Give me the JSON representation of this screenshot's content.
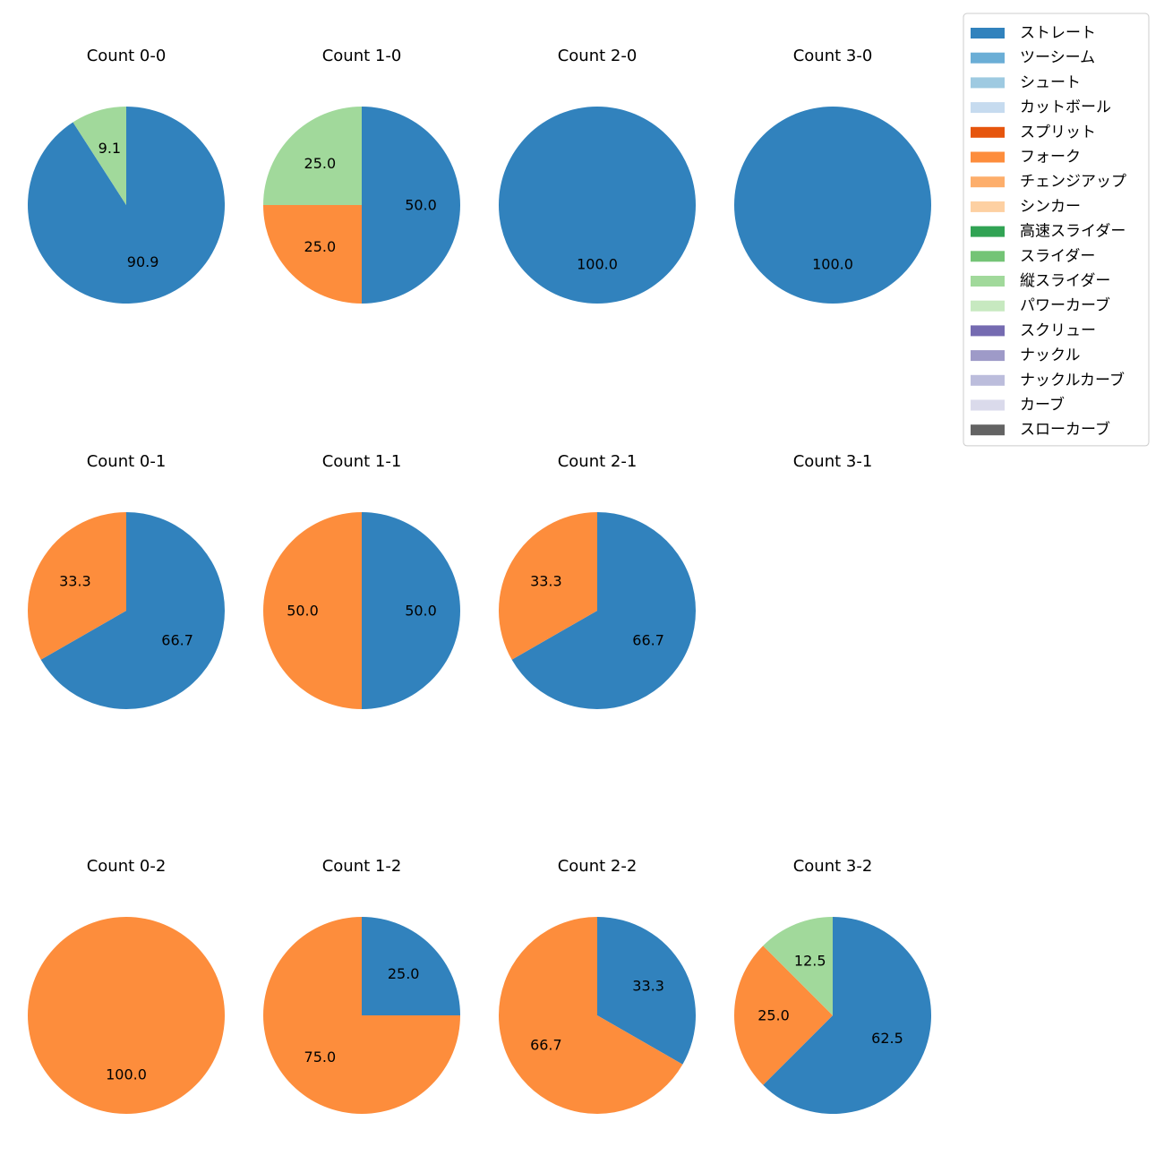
{
  "chart_data": {
    "type": "pie",
    "legend_position": "top-right",
    "legend": [
      {
        "name": "ストレート",
        "color": "#3182bd"
      },
      {
        "name": "ツーシーム",
        "color": "#6baed6"
      },
      {
        "name": "シュート",
        "color": "#9ecae1"
      },
      {
        "name": "カットボール",
        "color": "#c6dbef"
      },
      {
        "name": "スプリット",
        "color": "#e6550d"
      },
      {
        "name": "フォーク",
        "color": "#fd8d3c"
      },
      {
        "name": "チェンジアップ",
        "color": "#fdae6b"
      },
      {
        "name": "シンカー",
        "color": "#fdd0a2"
      },
      {
        "name": "高速スライダー",
        "color": "#31a354"
      },
      {
        "name": "スライダー",
        "color": "#74c476"
      },
      {
        "name": "縦スライダー",
        "color": "#a1d99b"
      },
      {
        "name": "パワーカーブ",
        "color": "#c7e9c0"
      },
      {
        "name": "スクリュー",
        "color": "#756bb1"
      },
      {
        "name": "ナックル",
        "color": "#9e9ac8"
      },
      {
        "name": "ナックルカーブ",
        "color": "#bcbddc"
      },
      {
        "name": "カーブ",
        "color": "#dadaeb"
      },
      {
        "name": "スローカーブ",
        "color": "#636363"
      }
    ],
    "charts": [
      {
        "title": "Count 0-0",
        "slices": [
          {
            "pitch": "ストレート",
            "value": 90.9
          },
          {
            "pitch": "縦スライダー",
            "value": 9.1
          }
        ]
      },
      {
        "title": "Count 1-0",
        "slices": [
          {
            "pitch": "ストレート",
            "value": 50.0
          },
          {
            "pitch": "フォーク",
            "value": 25.0
          },
          {
            "pitch": "縦スライダー",
            "value": 25.0
          }
        ]
      },
      {
        "title": "Count 2-0",
        "slices": [
          {
            "pitch": "ストレート",
            "value": 100.0
          }
        ]
      },
      {
        "title": "Count 3-0",
        "slices": [
          {
            "pitch": "ストレート",
            "value": 100.0
          }
        ]
      },
      {
        "title": "Count 0-1",
        "slices": [
          {
            "pitch": "ストレート",
            "value": 66.7
          },
          {
            "pitch": "フォーク",
            "value": 33.3
          }
        ]
      },
      {
        "title": "Count 1-1",
        "slices": [
          {
            "pitch": "ストレート",
            "value": 50.0
          },
          {
            "pitch": "フォーク",
            "value": 50.0
          }
        ]
      },
      {
        "title": "Count 2-1",
        "slices": [
          {
            "pitch": "ストレート",
            "value": 66.7
          },
          {
            "pitch": "フォーク",
            "value": 33.3
          }
        ]
      },
      {
        "title": "Count 3-1",
        "slices": []
      },
      {
        "title": "Count 0-2",
        "slices": [
          {
            "pitch": "フォーク",
            "value": 100.0
          }
        ]
      },
      {
        "title": "Count 1-2",
        "slices": [
          {
            "pitch": "ストレート",
            "value": 25.0
          },
          {
            "pitch": "フォーク",
            "value": 75.0
          }
        ]
      },
      {
        "title": "Count 2-2",
        "slices": [
          {
            "pitch": "ストレート",
            "value": 33.3
          },
          {
            "pitch": "フォーク",
            "value": 66.7
          }
        ]
      },
      {
        "title": "Count 3-2",
        "slices": [
          {
            "pitch": "ストレート",
            "value": 62.5
          },
          {
            "pitch": "フォーク",
            "value": 25.0
          },
          {
            "pitch": "縦スライダー",
            "value": 12.5
          }
        ]
      }
    ]
  }
}
